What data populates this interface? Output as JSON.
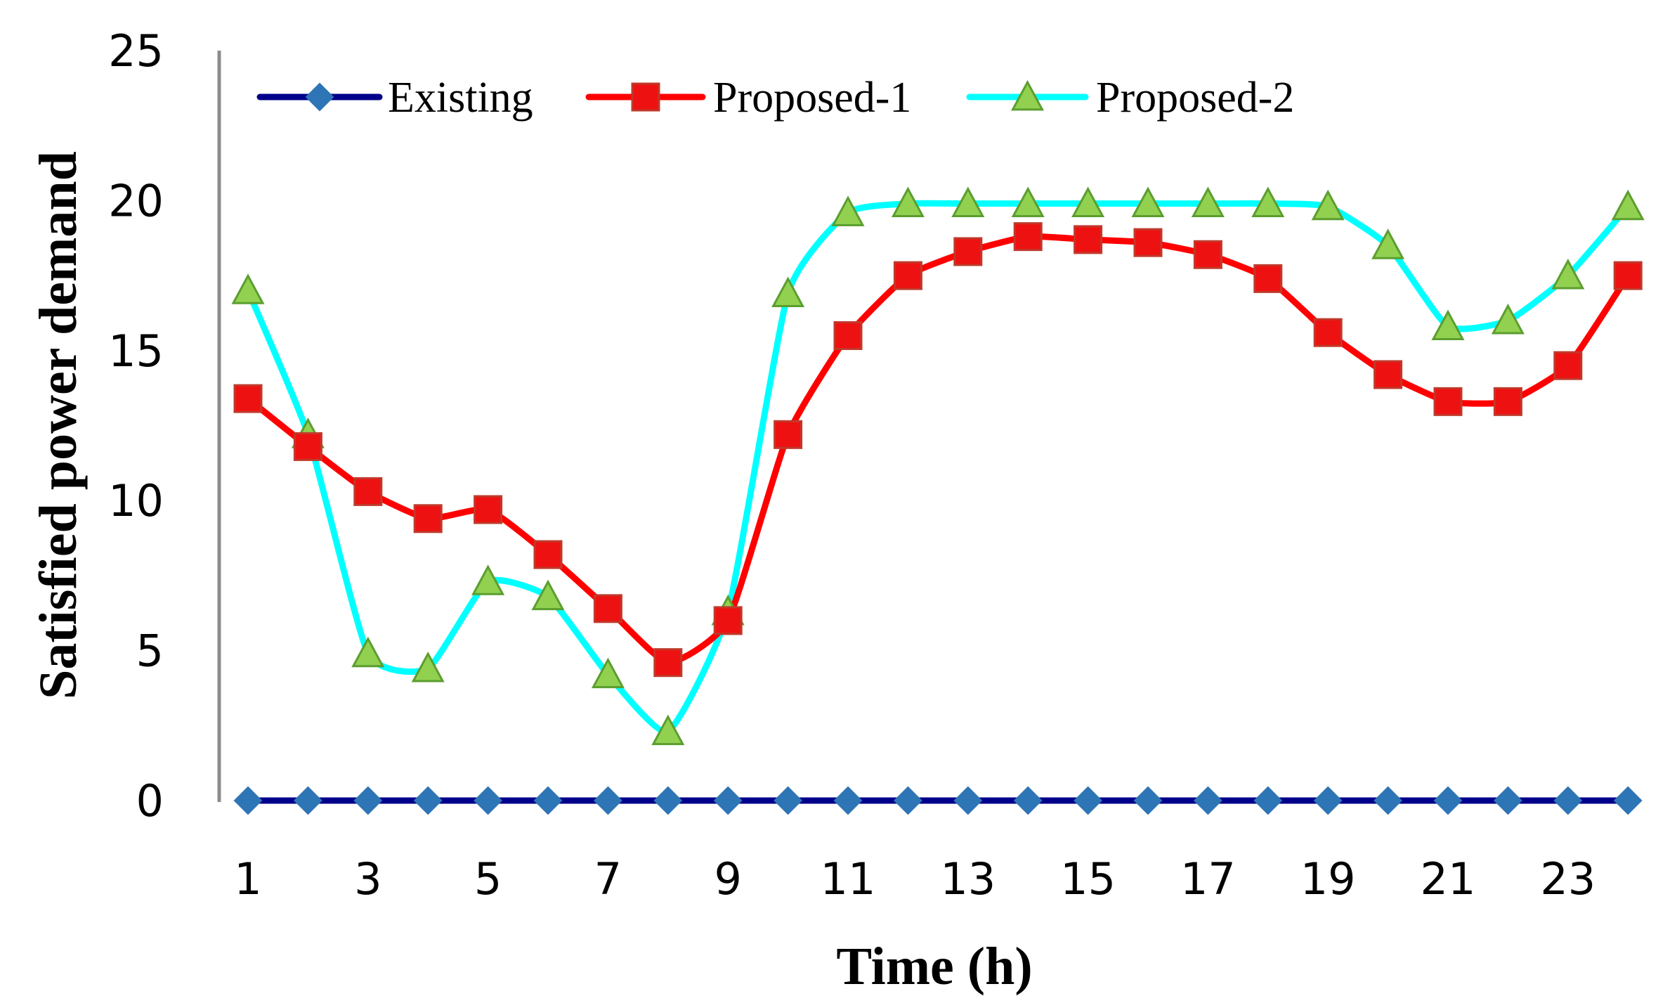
{
  "chart_data": {
    "type": "line",
    "title": "",
    "xlabel": "Time (h)",
    "ylabel": "Satisfied power demand",
    "x": [
      1,
      2,
      3,
      4,
      5,
      6,
      7,
      8,
      9,
      10,
      11,
      12,
      13,
      14,
      15,
      16,
      17,
      18,
      19,
      20,
      21,
      22,
      23,
      24
    ],
    "x_tick_labels": [
      "1",
      "3",
      "5",
      "7",
      "9",
      "11",
      "13",
      "15",
      "17",
      "19",
      "21",
      "23"
    ],
    "y_tick_labels": [
      "0",
      "5",
      "10",
      "15",
      "20",
      "25"
    ],
    "ylim": [
      0,
      25
    ],
    "xlim": [
      0.5,
      24.5
    ],
    "grid": false,
    "legend_position": "top",
    "series": [
      {
        "name": "Existing",
        "marker": "diamond",
        "line_color": "#00008B",
        "marker_fill": "#2E75B6",
        "marker_stroke": "#2E75B6",
        "values": [
          0,
          0,
          0,
          0,
          0,
          0,
          0,
          0,
          0,
          0,
          0,
          0,
          0,
          0,
          0,
          0,
          0,
          0,
          0,
          0,
          0,
          0,
          0,
          0
        ]
      },
      {
        "name": "Proposed-1",
        "marker": "square",
        "line_color": "#FF0000",
        "marker_fill": "#EE1111",
        "marker_stroke": "#C0392B",
        "values": [
          13.4,
          11.8,
          10.3,
          9.4,
          9.7,
          8.2,
          6.4,
          4.6,
          6.0,
          12.2,
          15.5,
          17.5,
          18.3,
          18.8,
          18.7,
          18.6,
          18.2,
          17.4,
          15.6,
          14.2,
          13.3,
          13.3,
          14.5,
          17.5
        ]
      },
      {
        "name": "Proposed-2",
        "marker": "triangle",
        "line_color": "#00FFFF",
        "marker_fill": "#92D050",
        "marker_stroke": "#5B9E2F",
        "values": [
          17.0,
          12.2,
          4.9,
          4.4,
          7.3,
          6.8,
          4.2,
          2.3,
          6.3,
          16.9,
          19.6,
          19.9,
          19.9,
          19.9,
          19.9,
          19.9,
          19.9,
          19.9,
          19.8,
          18.5,
          15.8,
          16.0,
          17.5,
          19.8
        ]
      }
    ]
  }
}
